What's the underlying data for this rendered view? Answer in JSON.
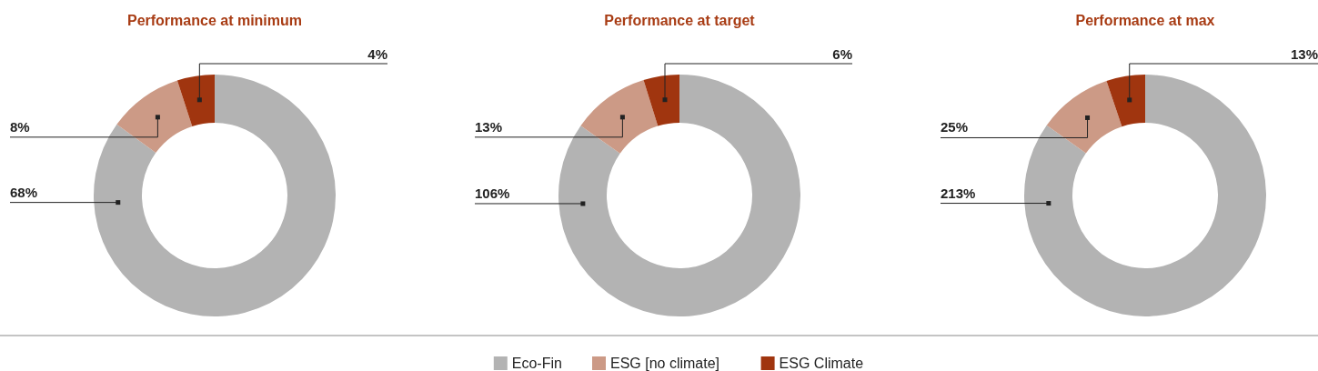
{
  "chart_data": [
    {
      "type": "donut",
      "title": "Performance at minimum",
      "categories": [
        null,
        null,
        null
      ],
      "values": [
        68,
        8,
        4
      ],
      "colors": [
        "#b3b3b3",
        "#cc9a86",
        "#a0350f"
      ],
      "value_labels": [
        "68%",
        "8%",
        "4%"
      ]
    },
    {
      "type": "donut",
      "title": "Performance at target",
      "categories": [
        "Eco-Fin",
        "ESG [no climate]",
        "ESG Climate"
      ],
      "values": [
        106,
        13,
        6
      ],
      "colors": [
        "#b3b3b3",
        "#cc9a86",
        "#a0350f"
      ],
      "value_labels": [
        "106%",
        "13%",
        "6%"
      ],
      "legend": "bottom"
    },
    {
      "type": "donut",
      "title": "Performance at max",
      "categories": [
        null,
        null,
        null
      ],
      "values": [
        213,
        25,
        13
      ],
      "colors": [
        "#b3b3b3",
        "#cc9a86",
        "#a0350f"
      ],
      "value_labels": [
        "213%",
        "25%",
        "13%"
      ]
    }
  ]
}
